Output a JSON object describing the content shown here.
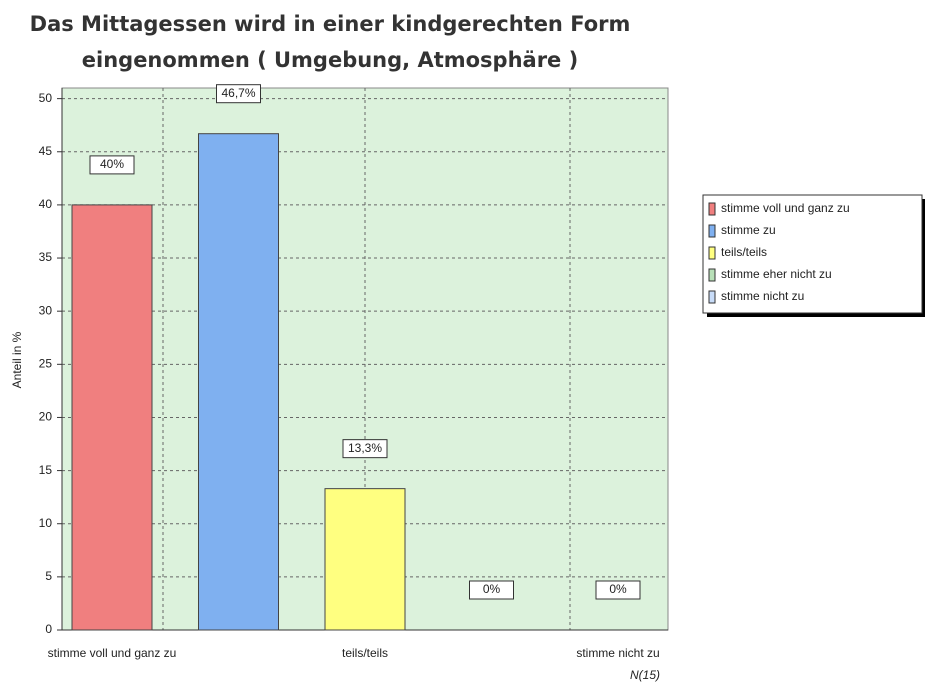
{
  "chart_data": {
    "type": "bar",
    "title": "Das Mittagessen wird in einer kindgerechten Form eingenommen ( Umgebung, Atmosphäre )",
    "ylabel": "Anteil in %",
    "categories": [
      "stimme voll und ganz zu",
      null,
      "teils/teils",
      null,
      "stimme nicht zu"
    ],
    "values": [
      40,
      46.7,
      13.3,
      0,
      0
    ],
    "value_labels": [
      "40%",
      "46,7%",
      "13,3%",
      "0%",
      "0%"
    ],
    "colors": [
      "#f07f7f",
      "#7fb0f0",
      "#ffff80",
      "#b8e0b8",
      "#c8dcf8"
    ],
    "legend": [
      "stimme voll und ganz zu",
      "stimme zu",
      "teils/teils",
      "stimme eher nicht zu",
      "stimme nicht zu"
    ],
    "legend_position": "right",
    "ylim": [
      0,
      51
    ],
    "yticks": [
      0,
      5,
      10,
      15,
      20,
      25,
      30,
      35,
      40,
      45,
      50
    ],
    "grid": true,
    "footnote": "N(15)"
  }
}
